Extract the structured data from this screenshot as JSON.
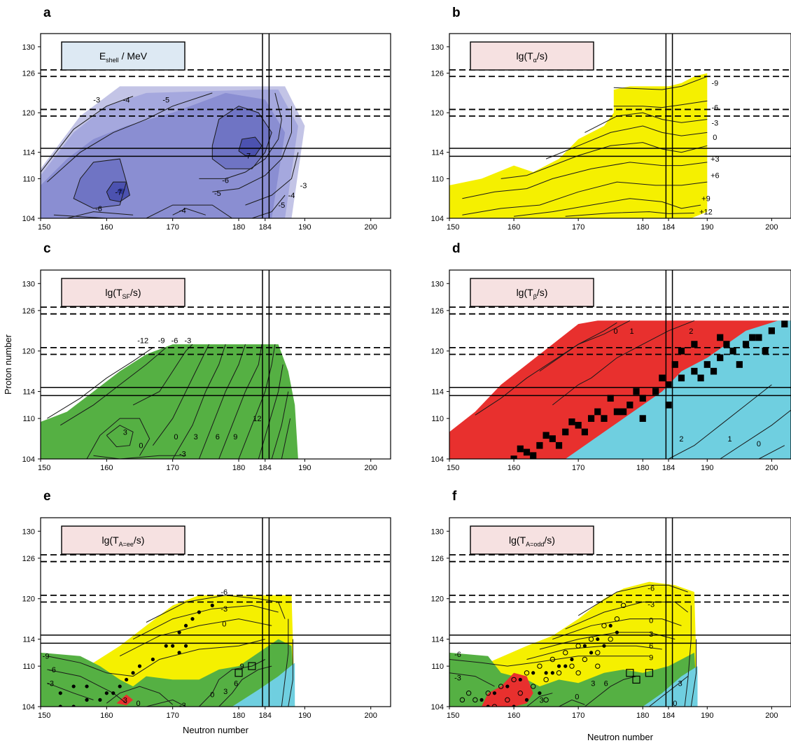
{
  "figure": {
    "shared_ylabel": "Proton number",
    "shared_xlabel_e": "Neutron number",
    "shared_xlabel_f": "Neutron number"
  },
  "chart_data": [
    {
      "id": "a",
      "type": "heatmap",
      "letter": "a",
      "box_main": "E",
      "box_sub": "shell",
      "box_tail": " / MeV",
      "box_color": "#dde9f3",
      "fill_color": "#8a8ed2",
      "xlim": [
        150,
        203
      ],
      "ylim": [
        104,
        132
      ],
      "xticks": [
        150,
        160,
        170,
        180,
        184,
        190,
        200
      ],
      "yticks": [
        104,
        110,
        114,
        120,
        126,
        130
      ],
      "contour_labels": [
        {
          "x": 158.5,
          "z": 122.0,
          "t": "-3"
        },
        {
          "x": 163.0,
          "z": 122.0,
          "t": "-4"
        },
        {
          "x": 169.0,
          "z": 122.0,
          "t": "-5"
        },
        {
          "x": 161.8,
          "z": 108.0,
          "t": "-7"
        },
        {
          "x": 158.8,
          "z": 105.5,
          "t": "-6"
        },
        {
          "x": 181.3,
          "z": 113.5,
          "t": "-7"
        },
        {
          "x": 178.0,
          "z": 109.8,
          "t": "-6"
        },
        {
          "x": 176.8,
          "z": 107.8,
          "t": "-5"
        },
        {
          "x": 171.5,
          "z": 105.2,
          "t": "-4"
        },
        {
          "x": 189.8,
          "z": 109.0,
          "t": "-3"
        },
        {
          "x": 188.0,
          "z": 107.5,
          "t": "-4"
        },
        {
          "x": 186.5,
          "z": 106.0,
          "t": "-5"
        }
      ]
    },
    {
      "id": "b",
      "type": "heatmap",
      "letter": "b",
      "box_main": "lg(T",
      "box_sub": "α",
      "box_tail": "/s)",
      "box_color": "#f6e1e1",
      "fill_color": "#f5f000",
      "xlim": [
        150,
        203
      ],
      "ylim": [
        104,
        132
      ],
      "xticks": [
        150,
        160,
        170,
        180,
        184,
        190,
        200
      ],
      "yticks": [
        104,
        110,
        114,
        120,
        126,
        130
      ],
      "contour_labels": [
        {
          "x": 191.2,
          "z": 124.5,
          "t": "-9"
        },
        {
          "x": 191.2,
          "z": 120.8,
          "t": "-6"
        },
        {
          "x": 191.2,
          "z": 118.5,
          "t": "-3"
        },
        {
          "x": 191.2,
          "z": 116.3,
          "t": "0"
        },
        {
          "x": 191.2,
          "z": 113.0,
          "t": "+3"
        },
        {
          "x": 191.2,
          "z": 110.5,
          "t": "+6"
        },
        {
          "x": 189.8,
          "z": 107.0,
          "t": "+9"
        },
        {
          "x": 189.8,
          "z": 105.0,
          "t": "+12"
        }
      ]
    },
    {
      "id": "c",
      "type": "heatmap",
      "letter": "c",
      "box_main": "lg(T",
      "box_sub": "SF",
      "box_tail": "/s)",
      "box_color": "#f6e1e1",
      "fill_color": "#55b043",
      "xlim": [
        150,
        203
      ],
      "ylim": [
        104,
        132
      ],
      "xticks": [
        150,
        160,
        170,
        180,
        184,
        190,
        200
      ],
      "yticks": [
        104,
        110,
        114,
        120,
        126,
        130
      ],
      "contour_labels": [
        {
          "x": 165.5,
          "z": 121.6,
          "t": "-12"
        },
        {
          "x": 168.3,
          "z": 121.6,
          "t": "-9"
        },
        {
          "x": 170.3,
          "z": 121.6,
          "t": "-6"
        },
        {
          "x": 172.3,
          "z": 121.6,
          "t": "-3"
        },
        {
          "x": 162.8,
          "z": 108.0,
          "t": "3"
        },
        {
          "x": 165.2,
          "z": 106.0,
          "t": "0"
        },
        {
          "x": 171.5,
          "z": 104.8,
          "t": "-3"
        },
        {
          "x": 170.5,
          "z": 107.3,
          "t": "0"
        },
        {
          "x": 173.5,
          "z": 107.3,
          "t": "3"
        },
        {
          "x": 176.8,
          "z": 107.3,
          "t": "6"
        },
        {
          "x": 179.5,
          "z": 107.3,
          "t": "9"
        },
        {
          "x": 182.8,
          "z": 110.0,
          "t": "12"
        }
      ]
    },
    {
      "id": "d",
      "type": "heatmap",
      "letter": "d",
      "box_main": "lg(T",
      "box_sub": "β",
      "box_tail": "/s)",
      "box_color": "#f6e1e1",
      "fill_color": "#e8302e",
      "fill_color_2": "#6fcfe0",
      "boundary_color": "#000000",
      "xlim": [
        150,
        203
      ],
      "ylim": [
        104,
        132
      ],
      "xticks": [
        150,
        160,
        170,
        180,
        184,
        190,
        200
      ],
      "yticks": [
        104,
        110,
        114,
        120,
        126,
        130
      ],
      "contour_labels": [
        {
          "x": 175.8,
          "z": 123.0,
          "t": "0"
        },
        {
          "x": 178.3,
          "z": 123.0,
          "t": "1"
        },
        {
          "x": 187.5,
          "z": 123.0,
          "t": "2"
        },
        {
          "x": 186.0,
          "z": 107.0,
          "t": "2"
        },
        {
          "x": 193.5,
          "z": 107.0,
          "t": "1"
        },
        {
          "x": 198.0,
          "z": 106.3,
          "t": "0"
        }
      ]
    },
    {
      "id": "e",
      "type": "heatmap",
      "letter": "e",
      "box_main": "lg(T",
      "box_sub": "A=ee",
      "box_tail": "/s)",
      "box_color": "#f6e1e1",
      "xlim": [
        150,
        203
      ],
      "ylim": [
        104,
        132
      ],
      "xticks": [
        150,
        160,
        170,
        180,
        184,
        190,
        200
      ],
      "yticks": [
        104,
        110,
        114,
        120,
        126,
        130
      ],
      "contour_labels": [
        {
          "x": 177.8,
          "z": 121.0,
          "t": "-6"
        },
        {
          "x": 177.8,
          "z": 118.5,
          "t": "-3"
        },
        {
          "x": 177.8,
          "z": 116.3,
          "t": "0"
        },
        {
          "x": 150.8,
          "z": 111.5,
          "t": "-9"
        },
        {
          "x": 151.8,
          "z": 109.5,
          "t": "-6"
        },
        {
          "x": 151.5,
          "z": 107.5,
          "t": "-3"
        },
        {
          "x": 162.8,
          "z": 105.0,
          "t": "3"
        },
        {
          "x": 164.8,
          "z": 104.5,
          "t": "0"
        },
        {
          "x": 171.5,
          "z": 104.2,
          "t": "-3"
        },
        {
          "x": 176.0,
          "z": 105.8,
          "t": "0"
        },
        {
          "x": 178.0,
          "z": 106.3,
          "t": "3"
        },
        {
          "x": 179.6,
          "z": 107.5,
          "t": "6"
        },
        {
          "x": 180.5,
          "z": 110.0,
          "t": "9"
        }
      ],
      "dots": [
        [
          159,
          105
        ],
        [
          160,
          106
        ],
        [
          161,
          106
        ],
        [
          162,
          107
        ],
        [
          163,
          108
        ],
        [
          164,
          109
        ],
        [
          165,
          110
        ],
        [
          167,
          111
        ],
        [
          169,
          113
        ],
        [
          171,
          115
        ],
        [
          172,
          116
        ],
        [
          173,
          117
        ],
        [
          170,
          113
        ],
        [
          171,
          112
        ],
        [
          174,
          118
        ],
        [
          176,
          119
        ],
        [
          157,
          107
        ],
        [
          155,
          107
        ],
        [
          153,
          106
        ],
        [
          153,
          104
        ],
        [
          155,
          104
        ],
        [
          157,
          105
        ],
        [
          172,
          113
        ]
      ],
      "squares": [
        [
          180,
          109
        ],
        [
          182,
          110
        ]
      ]
    },
    {
      "id": "f",
      "type": "heatmap",
      "letter": "f",
      "box_main": "lg(T",
      "box_sub": "A=odd",
      "box_tail": "/s)",
      "box_color": "#f6e1e1",
      "xlim": [
        150,
        203
      ],
      "ylim": [
        104,
        132
      ],
      "xticks": [
        150,
        160,
        170,
        180,
        184,
        190,
        200
      ],
      "yticks": [
        104,
        110,
        114,
        120,
        126,
        130
      ],
      "contour_labels": [
        {
          "x": 181.3,
          "z": 121.6,
          "t": "-6"
        },
        {
          "x": 181.3,
          "z": 119.2,
          "t": "-3"
        },
        {
          "x": 181.3,
          "z": 116.8,
          "t": "0"
        },
        {
          "x": 181.3,
          "z": 114.8,
          "t": "3"
        },
        {
          "x": 181.3,
          "z": 113.0,
          "t": "6"
        },
        {
          "x": 181.3,
          "z": 111.3,
          "t": "9"
        },
        {
          "x": 151.3,
          "z": 111.8,
          "t": "-6"
        },
        {
          "x": 151.3,
          "z": 108.3,
          "t": "-3"
        },
        {
          "x": 164.3,
          "z": 105.0,
          "t": "3"
        },
        {
          "x": 169.8,
          "z": 105.5,
          "t": "0"
        },
        {
          "x": 172.3,
          "z": 107.5,
          "t": "3"
        },
        {
          "x": 174.3,
          "z": 107.5,
          "t": "6"
        },
        {
          "x": 185.8,
          "z": 107.5,
          "t": "3"
        },
        {
          "x": 185.0,
          "z": 104.5,
          "t": "0"
        }
      ],
      "circles": [
        [
          152,
          105
        ],
        [
          154,
          105
        ],
        [
          156,
          106
        ],
        [
          158,
          107
        ],
        [
          160,
          108
        ],
        [
          162,
          109
        ],
        [
          164,
          110
        ],
        [
          166,
          111
        ],
        [
          168,
          112
        ],
        [
          170,
          113
        ],
        [
          172,
          114
        ],
        [
          174,
          116
        ],
        [
          176,
          117
        ],
        [
          177,
          119
        ],
        [
          161,
          106
        ],
        [
          163,
          107
        ],
        [
          165,
          108
        ],
        [
          167,
          109
        ],
        [
          169,
          110
        ],
        [
          171,
          111
        ],
        [
          173,
          112
        ],
        [
          175,
          114
        ],
        [
          153,
          106
        ],
        [
          157,
          104
        ],
        [
          159,
          105
        ],
        [
          165,
          105
        ],
        [
          170,
          109
        ],
        [
          173,
          110
        ]
      ],
      "dots": [
        [
          155,
          105
        ],
        [
          157,
          106
        ],
        [
          159,
          107
        ],
        [
          161,
          108
        ],
        [
          163,
          109
        ],
        [
          165,
          109
        ],
        [
          167,
          110
        ],
        [
          169,
          111
        ],
        [
          171,
          113
        ],
        [
          173,
          114
        ],
        [
          175,
          116
        ],
        [
          176,
          115
        ],
        [
          172,
          112
        ],
        [
          168,
          110
        ],
        [
          166,
          109
        ],
        [
          162,
          105
        ],
        [
          164,
          106
        ],
        [
          160,
          104
        ],
        [
          156,
          104
        ],
        [
          174,
          113
        ]
      ],
      "squares": [
        [
          178,
          109
        ],
        [
          181,
          109
        ],
        [
          179,
          108
        ]
      ]
    }
  ]
}
